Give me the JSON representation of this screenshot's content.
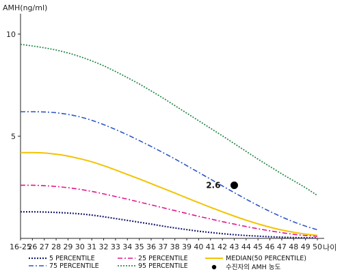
{
  "chart_data": {
    "type": "line",
    "xlabel": "나이",
    "ylabel": "AMH(ng/ml)",
    "categories": [
      "16-25",
      "26",
      "27",
      "28",
      "29",
      "30",
      "31",
      "32",
      "33",
      "34",
      "35",
      "36",
      "37",
      "38",
      "39",
      "40",
      "41",
      "42",
      "43",
      "44",
      "45",
      "46",
      "47",
      "48",
      "49",
      "50"
    ],
    "y_ticks": [
      5,
      10
    ],
    "ylim": [
      0,
      11
    ],
    "grid": false,
    "legend_position": "bottom",
    "series": [
      {
        "name": "5 PERCENTILE",
        "color": "#1b1f6e",
        "dash": "2,2",
        "width": 2.2,
        "values": [
          1.3,
          1.3,
          1.29,
          1.27,
          1.24,
          1.2,
          1.14,
          1.06,
          0.97,
          0.88,
          0.79,
          0.7,
          0.6,
          0.51,
          0.43,
          0.35,
          0.29,
          0.23,
          0.18,
          0.14,
          0.11,
          0.08,
          0.06,
          0.04,
          0.03,
          0.02
        ]
      },
      {
        "name": "25 PERCENTILE",
        "color": "#e0148a",
        "dash": "7,3,2,3",
        "width": 1.6,
        "values": [
          2.6,
          2.6,
          2.58,
          2.54,
          2.48,
          2.4,
          2.3,
          2.18,
          2.05,
          1.92,
          1.78,
          1.64,
          1.5,
          1.36,
          1.22,
          1.08,
          0.95,
          0.82,
          0.7,
          0.58,
          0.47,
          0.37,
          0.28,
          0.2,
          0.14,
          0.1
        ]
      },
      {
        "name": "MEDIAN(50 PERCENTILE)",
        "color": "#f2c300",
        "dash": "",
        "width": 2,
        "values": [
          4.2,
          4.2,
          4.18,
          4.12,
          4.03,
          3.9,
          3.75,
          3.56,
          3.35,
          3.13,
          2.91,
          2.68,
          2.45,
          2.22,
          1.98,
          1.75,
          1.52,
          1.3,
          1.09,
          0.89,
          0.71,
          0.55,
          0.41,
          0.3,
          0.21,
          0.15
        ]
      },
      {
        "name": "75 PERCENTILE",
        "color": "#2a55c6",
        "dash": "7,3,2,3",
        "width": 1.6,
        "values": [
          6.2,
          6.2,
          6.19,
          6.15,
          6.07,
          5.95,
          5.78,
          5.57,
          5.33,
          5.07,
          4.79,
          4.5,
          4.2,
          3.89,
          3.56,
          3.23,
          2.9,
          2.57,
          2.24,
          1.92,
          1.61,
          1.32,
          1.05,
          0.81,
          0.6,
          0.42
        ]
      },
      {
        "name": "95 PERCENTILE",
        "color": "#2a8a4a",
        "dash": "2,2",
        "width": 1.8,
        "values": [
          9.5,
          9.42,
          9.33,
          9.22,
          9.08,
          8.9,
          8.69,
          8.45,
          8.17,
          7.87,
          7.56,
          7.22,
          6.87,
          6.5,
          6.13,
          5.76,
          5.39,
          5.02,
          4.64,
          4.26,
          3.88,
          3.52,
          3.16,
          2.82,
          2.48,
          2.1
        ]
      }
    ],
    "annotation": {
      "name": "수진자의 AMH 농도",
      "x": "43",
      "value": 2.6,
      "label": "2.6",
      "color": "#000000"
    }
  }
}
